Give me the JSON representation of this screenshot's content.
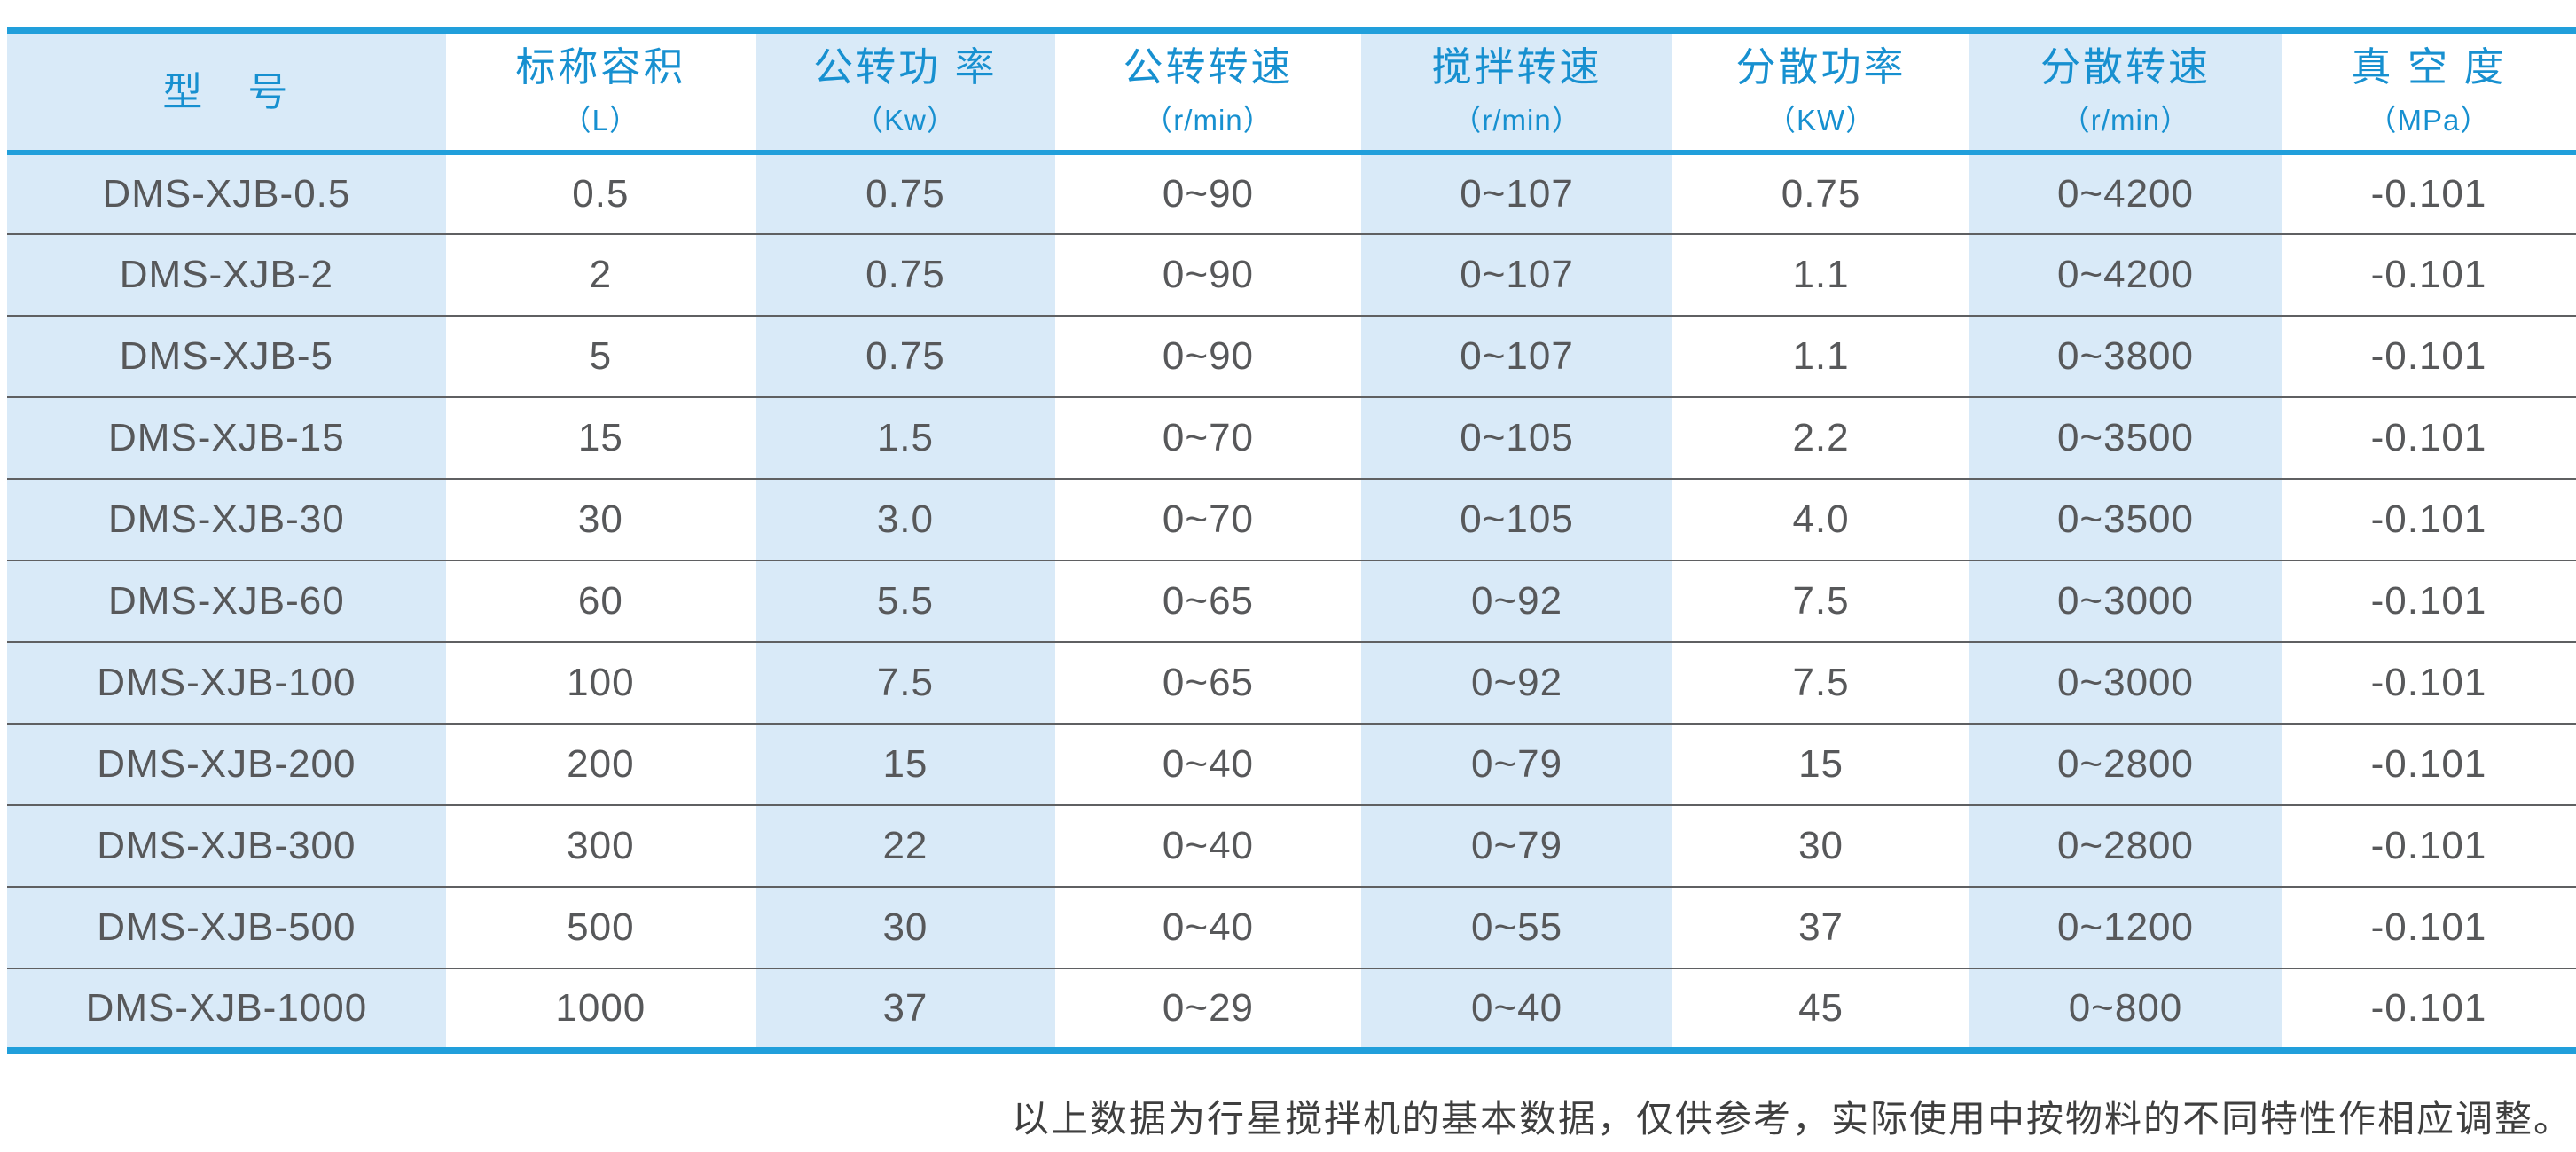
{
  "colors": {
    "accent_line": "#219fdb",
    "header_text": "#1790d0",
    "stripe_blue": "#d9eaf8",
    "cell_text": "#57585a",
    "row_sep": "#5f6062",
    "footer_text": "#3f3f3f",
    "page_bg": "#ffffff"
  },
  "table": {
    "columns": [
      {
        "id": "model",
        "title": "型　号",
        "unit": ""
      },
      {
        "id": "nominal-volume",
        "title": "标称容积",
        "unit": "（L）"
      },
      {
        "id": "revolution-power",
        "title": "公转功 率",
        "unit": "（Kw）"
      },
      {
        "id": "revolution-speed",
        "title": "公转转速",
        "unit": "（r/min）"
      },
      {
        "id": "stirring-speed",
        "title": "搅拌转速",
        "unit": "（r/min）"
      },
      {
        "id": "dispersion-power",
        "title": "分散功率",
        "unit": "（KW）"
      },
      {
        "id": "dispersion-speed",
        "title": "分散转速",
        "unit": "（r/min）"
      },
      {
        "id": "vacuum-degree",
        "title": "真 空 度",
        "unit": "（MPa）"
      }
    ],
    "rows": [
      [
        "DMS-XJB-0.5",
        "0.5",
        "0.75",
        "0~90",
        "0~107",
        "0.75",
        "0~4200",
        "-0.101"
      ],
      [
        "DMS-XJB-2",
        "2",
        "0.75",
        "0~90",
        "0~107",
        "1.1",
        "0~4200",
        "-0.101"
      ],
      [
        "DMS-XJB-5",
        "5",
        "0.75",
        "0~90",
        "0~107",
        "1.1",
        "0~3800",
        "-0.101"
      ],
      [
        "DMS-XJB-15",
        "15",
        "1.5",
        "0~70",
        "0~105",
        "2.2",
        "0~3500",
        "-0.101"
      ],
      [
        "DMS-XJB-30",
        "30",
        "3.0",
        "0~70",
        "0~105",
        "4.0",
        "0~3500",
        "-0.101"
      ],
      [
        "DMS-XJB-60",
        "60",
        "5.5",
        "0~65",
        "0~92",
        "7.5",
        "0~3000",
        "-0.101"
      ],
      [
        "DMS-XJB-100",
        "100",
        "7.5",
        "0~65",
        "0~92",
        "7.5",
        "0~3000",
        "-0.101"
      ],
      [
        "DMS-XJB-200",
        "200",
        "15",
        "0~40",
        "0~79",
        "15",
        "0~2800",
        "-0.101"
      ],
      [
        "DMS-XJB-300",
        "300",
        "22",
        "0~40",
        "0~79",
        "30",
        "0~2800",
        "-0.101"
      ],
      [
        "DMS-XJB-500",
        "500",
        "30",
        "0~40",
        "0~55",
        "37",
        "0~1200",
        "-0.101"
      ],
      [
        "DMS-XJB-1000",
        "1000",
        "37",
        "0~29",
        "0~40",
        "45",
        "0~800",
        "-0.101"
      ]
    ]
  },
  "footer": {
    "note": "以上数据为行星搅拌机的基本数据，仅供参考，实际使用中按物料的不同特性作相应调整。"
  }
}
